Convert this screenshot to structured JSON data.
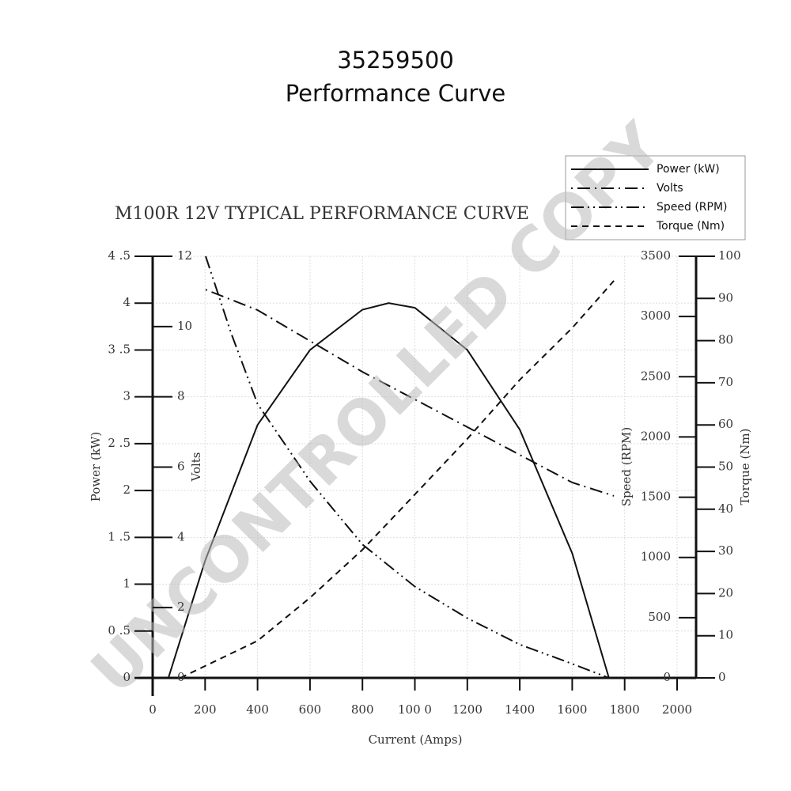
{
  "chart_data": {
    "type": "line",
    "title": "35259500",
    "subtitle": "Performance Curve",
    "chart_title": "M100R 12V TYPICAL PERFORMANCE CURVE",
    "watermark": "UNCONTROLLED COPY",
    "x_label": "Current (Amps)",
    "y_label": "Power (kW)",
    "y2_label": "Volts",
    "y3_label": "Speed (RPM)",
    "y4_label": "Torque (Nm)",
    "xlim": [
      0,
      2000
    ],
    "xticks": [
      0,
      200,
      400,
      600,
      800,
      {
        "value": 1000,
        "label": "100 0"
      },
      1200,
      1400,
      1600,
      1800,
      2000
    ],
    "ylim": [
      0,
      4.5
    ],
    "yticks": [
      0,
      {
        "value": 0.5,
        "label": "0 .5"
      },
      1,
      {
        "value": 1.5,
        "label": "1 .5"
      },
      2,
      {
        "value": 2.5,
        "label": "2 .5"
      },
      3,
      {
        "value": 3.5,
        "label": "3 .5"
      },
      4,
      {
        "value": 4.5,
        "label": "4 .5"
      }
    ],
    "y2lim": [
      0,
      12
    ],
    "y2ticks": [
      0,
      2,
      4,
      6,
      8,
      10,
      12
    ],
    "y3lim": [
      0,
      3500
    ],
    "y3ticks": [
      0,
      500,
      1000,
      1500,
      2000,
      2500,
      3000,
      3500
    ],
    "y4lim": [
      0,
      100
    ],
    "y4ticks": [
      0,
      10,
      20,
      30,
      40,
      50,
      60,
      70,
      80,
      90,
      100
    ],
    "grid": true,
    "legend": "top-right",
    "series": [
      {
        "name": "Power (kW)",
        "color": "#111111",
        "dash": "solid",
        "axis": "y",
        "x": [
          60,
          200,
          400,
          600,
          800,
          900,
          1000,
          1200,
          1400,
          1600,
          1740
        ],
        "values": [
          0,
          1.25,
          2.7,
          3.5,
          3.93,
          4.0,
          3.95,
          3.5,
          2.65,
          1.33,
          0
        ]
      },
      {
        "name": "Volts",
        "color": "#111111",
        "dash": "dot-dash",
        "axis": "y2",
        "x": [
          202,
          400,
          800,
          1200,
          1400,
          1600,
          1759
        ],
        "values": [
          11.05,
          10.47,
          8.71,
          7.14,
          6.35,
          5.56,
          5.18
        ]
      },
      {
        "name": "Speed (RPM)",
        "color": "#111111",
        "dash": "dash-dot-dot",
        "axis": "y3",
        "x": [
          202,
          300,
          400,
          600,
          800,
          1000,
          1200,
          1400,
          1600,
          1740
        ],
        "values": [
          3500,
          2858,
          2275,
          1633,
          1108,
          758,
          496,
          277,
          117,
          0
        ]
      },
      {
        "name": "Torque (Nm)",
        "color": "#111111",
        "dash": "dash",
        "axis": "y4",
        "x": [
          106,
          400,
          600,
          800,
          1000,
          1200,
          1400,
          1600,
          1759
        ],
        "values": [
          0,
          8.8,
          19,
          30.4,
          43.5,
          56.7,
          70.7,
          83,
          94.2
        ]
      }
    ]
  }
}
